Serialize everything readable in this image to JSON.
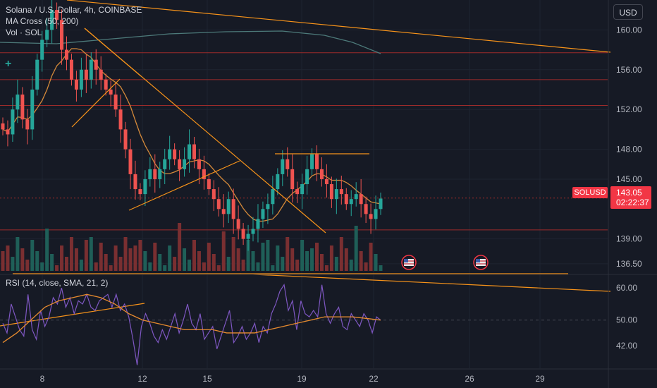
{
  "header": {
    "title": "Solana / U.S. Dollar, 4h, COINBASE",
    "ma_label": "MA Cross (50, 200)",
    "vol_label": "Vol · SOL",
    "rsi_label": "RSI (14, close, SMA, 21, 2)",
    "currency": "USD"
  },
  "price_tag": {
    "symbol": "SOLUSD",
    "price": "143.05",
    "countdown": "02:22:37"
  },
  "colors": {
    "background": "#161a25",
    "up": "#26a69a",
    "down": "#ef5350",
    "trendline": "#f7931a",
    "level_line": "#9c2b2b",
    "rsi_line": "#7e57c2",
    "ma200": "#4d7a7a"
  },
  "chart_data": [
    {
      "type": "candlestick",
      "title": "Solana / U.S. Dollar, 4h, COINBASE",
      "x_ticks": [
        "8",
        "12",
        "15",
        "19",
        "22",
        "26",
        "29"
      ],
      "y_ticks": [
        "160.00",
        "156.00",
        "152.00",
        "148.00",
        "145.00",
        "139.00",
        "136.50"
      ],
      "ylim": [
        135.5,
        163
      ],
      "last_price": 143.05,
      "horizontal_levels": [
        157.7,
        155.0,
        152.4,
        143.1,
        139.9
      ],
      "close_series": [
        150,
        149.5,
        152,
        153.5,
        151,
        150,
        154,
        157,
        159,
        160,
        162,
        161,
        158,
        157,
        155,
        154,
        156,
        155,
        157,
        156,
        155,
        154,
        153.5,
        152,
        150,
        148,
        145.5,
        144,
        143.5,
        145,
        146,
        145,
        146,
        147,
        148,
        147,
        146,
        147,
        148.5,
        147,
        146,
        145,
        144,
        143,
        142,
        141.5,
        143,
        141,
        140,
        139,
        139.5,
        140,
        141,
        142,
        142.5,
        144,
        145.5,
        147,
        146,
        144,
        143.5,
        144.5,
        146,
        147.5,
        146,
        145,
        144.5,
        143,
        144,
        143.5,
        142.5,
        143,
        143.5,
        142.5,
        141.5,
        141,
        142,
        143.05
      ]
    },
    {
      "type": "line",
      "title": "RSI (14, close, SMA, 21, 2)",
      "y_ticks": [
        "60.00",
        "50.00",
        "42.00"
      ],
      "ylim": [
        35,
        64
      ],
      "rsi": [
        49,
        46,
        55,
        51,
        47,
        45,
        58,
        47,
        44,
        53,
        48,
        51,
        57,
        55,
        60,
        54,
        57,
        52,
        56,
        55,
        58,
        54,
        53,
        56,
        57,
        58,
        54,
        58,
        53,
        55,
        51,
        44,
        36,
        48,
        52,
        49,
        45,
        43,
        47,
        44,
        48,
        52,
        46,
        50,
        55,
        49,
        47,
        52,
        44,
        46,
        48,
        41,
        45,
        49,
        53,
        43,
        45,
        48,
        44,
        46,
        49,
        43,
        48,
        46,
        52,
        55,
        59,
        61,
        53,
        56,
        47,
        56,
        52,
        51,
        53,
        51,
        61,
        52,
        49,
        52,
        54,
        48,
        47,
        52,
        50,
        48,
        52,
        50,
        46,
        51,
        50
      ],
      "rsi_ma": [
        43,
        46,
        50,
        54,
        56,
        57,
        58,
        57,
        55,
        52,
        50,
        49,
        48,
        47,
        47,
        47,
        46,
        46,
        46,
        47,
        48,
        49,
        50,
        51,
        51,
        51,
        50.5,
        50
      ]
    }
  ]
}
